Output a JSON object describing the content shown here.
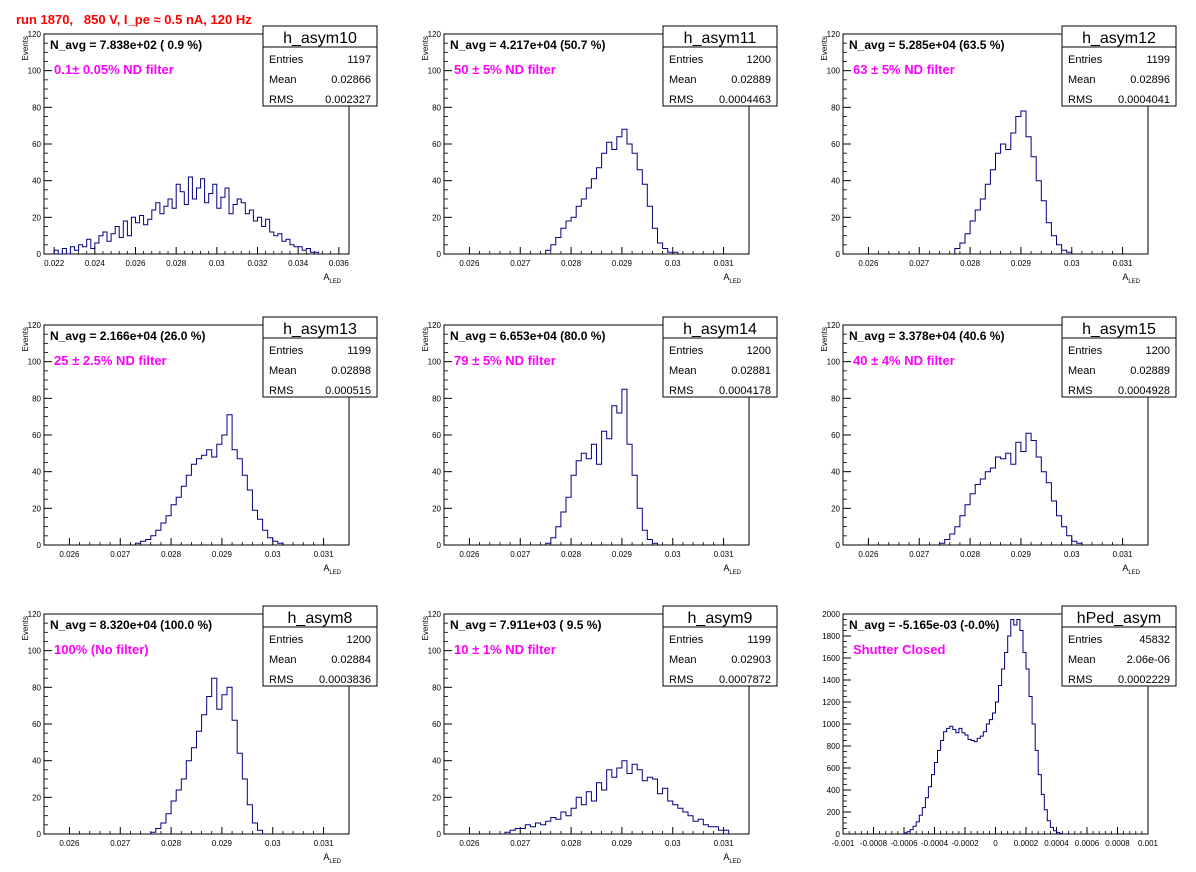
{
  "page_title": "run 1870,   850 V, I_pe ≈ 0.5 nA, 120 Hz",
  "colors": {
    "histogram": "#000080",
    "annotation": "#ff00ff",
    "title": "#ff0000",
    "axis": "#000000"
  },
  "chart_data": [
    {
      "type": "histogram",
      "name": "h_asym10",
      "navg": "N_avg = 7.838e+02 ( 0.9 %)",
      "note": "0.1± 0.05% ND filter",
      "stats": [
        {
          "label": "Entries",
          "value": "1197"
        },
        {
          "label": "Mean",
          "value": "0.02866"
        },
        {
          "label": "RMS",
          "value": "0.002327"
        }
      ],
      "xlabel": "A",
      "xlabel_sub": "LED",
      "ylabel": "Events",
      "xlim": [
        0.0215,
        0.0365
      ],
      "ylim": [
        0,
        120
      ],
      "xticks": [
        0.022,
        0.024,
        0.026,
        0.028,
        0.03,
        0.032,
        0.034,
        0.036
      ],
      "xtick_labels": [
        "0.022",
        "0.024",
        "0.026",
        "0.028",
        "0.03",
        "0.032",
        "0.034",
        "0.036"
      ],
      "yticks": [
        0,
        20,
        40,
        60,
        80,
        100,
        120
      ],
      "ytick_labels": [
        "0",
        "20",
        "40",
        "60",
        "80",
        "100",
        "120"
      ],
      "bin_centers": [
        0.0221,
        0.0223,
        0.0225,
        0.0227,
        0.0229,
        0.0231,
        0.0233,
        0.0235,
        0.0237,
        0.0239,
        0.0241,
        0.0243,
        0.0245,
        0.0247,
        0.0249,
        0.0251,
        0.0253,
        0.0255,
        0.0257,
        0.0259,
        0.0261,
        0.0263,
        0.0265,
        0.0267,
        0.0269,
        0.0271,
        0.0273,
        0.0275,
        0.0277,
        0.0279,
        0.0281,
        0.0283,
        0.0285,
        0.0287,
        0.0289,
        0.0291,
        0.0293,
        0.0295,
        0.0297,
        0.0299,
        0.0301,
        0.0303,
        0.0305,
        0.0307,
        0.0309,
        0.0311,
        0.0313,
        0.0315,
        0.0317,
        0.0319,
        0.0321,
        0.0323,
        0.0325,
        0.0327,
        0.0329,
        0.0331,
        0.0333,
        0.0335,
        0.0337,
        0.0339,
        0.0341,
        0.0343,
        0.0345,
        0.0347,
        0.0349
      ],
      "counts": [
        2,
        0,
        3,
        0,
        4,
        2,
        5,
        4,
        8,
        3,
        6,
        10,
        12,
        7,
        11,
        15,
        9,
        18,
        10,
        20,
        17,
        21,
        16,
        19,
        24,
        28,
        22,
        26,
        30,
        25,
        38,
        34,
        27,
        42,
        30,
        36,
        41,
        28,
        33,
        38,
        25,
        31,
        36,
        22,
        27,
        30,
        28,
        22,
        24,
        18,
        20,
        15,
        19,
        12,
        10,
        11,
        7,
        8,
        5,
        4,
        4,
        2,
        3,
        1,
        1
      ]
    },
    {
      "type": "histogram",
      "name": "h_asym11",
      "navg": "N_avg = 4.217e+04 (50.7 %)",
      "note": "50 ± 5% ND filter",
      "stats": [
        {
          "label": "Entries",
          "value": "1200"
        },
        {
          "label": "Mean",
          "value": "0.02889"
        },
        {
          "label": "RMS",
          "value": "0.0004463"
        }
      ],
      "xlabel": "A",
      "xlabel_sub": "LED",
      "ylabel": "Events",
      "xlim": [
        0.0255,
        0.0315
      ],
      "ylim": [
        0,
        120
      ],
      "xticks": [
        0.026,
        0.027,
        0.028,
        0.029,
        0.03,
        0.031
      ],
      "xtick_labels": [
        "0.026",
        "0.027",
        "0.028",
        "0.029",
        "0.03",
        "0.031"
      ],
      "yticks": [
        0,
        20,
        40,
        60,
        80,
        100,
        120
      ],
      "ytick_labels": [
        "0",
        "20",
        "40",
        "60",
        "80",
        "100",
        "120"
      ],
      "bin_centers": [
        0.02755,
        0.02765,
        0.02775,
        0.02785,
        0.02795,
        0.02805,
        0.02815,
        0.02825,
        0.02835,
        0.02845,
        0.02855,
        0.02865,
        0.02875,
        0.02885,
        0.02895,
        0.02905,
        0.02915,
        0.02925,
        0.02935,
        0.02945,
        0.02955,
        0.02965,
        0.02975,
        0.02985,
        0.02995,
        0.03005
      ],
      "counts": [
        2,
        5,
        9,
        14,
        18,
        20,
        26,
        30,
        36,
        41,
        47,
        55,
        61,
        57,
        64,
        68,
        60,
        55,
        46,
        38,
        26,
        14,
        6,
        3,
        1,
        1
      ]
    },
    {
      "type": "histogram",
      "name": "h_asym12",
      "navg": "N_avg = 5.285e+04 (63.5 %)",
      "note": "63 ± 5% ND filter",
      "stats": [
        {
          "label": "Entries",
          "value": "1199"
        },
        {
          "label": "Mean",
          "value": "0.02896"
        },
        {
          "label": "RMS",
          "value": "0.0004041"
        }
      ],
      "xlabel": "A",
      "xlabel_sub": "LED",
      "ylabel": "Events",
      "xlim": [
        0.0255,
        0.0315
      ],
      "ylim": [
        0,
        120
      ],
      "xticks": [
        0.026,
        0.027,
        0.028,
        0.029,
        0.03,
        0.031
      ],
      "xtick_labels": [
        "0.026",
        "0.027",
        "0.028",
        "0.029",
        "0.03",
        "0.031"
      ],
      "yticks": [
        0,
        20,
        40,
        60,
        80,
        100,
        120
      ],
      "ytick_labels": [
        "0",
        "20",
        "40",
        "60",
        "80",
        "100",
        "120"
      ],
      "bin_centers": [
        0.02775,
        0.02785,
        0.02795,
        0.02805,
        0.02815,
        0.02825,
        0.02835,
        0.02845,
        0.02855,
        0.02865,
        0.02875,
        0.02885,
        0.02895,
        0.02905,
        0.02915,
        0.02925,
        0.02935,
        0.02945,
        0.02955,
        0.02965,
        0.02975,
        0.02985,
        0.02995
      ],
      "counts": [
        3,
        6,
        11,
        18,
        24,
        30,
        38,
        46,
        55,
        60,
        57,
        66,
        75,
        78,
        64,
        53,
        40,
        29,
        17,
        10,
        5,
        2,
        1
      ]
    },
    {
      "type": "histogram",
      "name": "h_asym13",
      "navg": "N_avg = 2.166e+04 (26.0 %)",
      "note": "25 ± 2.5% ND filter",
      "stats": [
        {
          "label": "Entries",
          "value": "1199"
        },
        {
          "label": "Mean",
          "value": "0.02898"
        },
        {
          "label": "RMS",
          "value": "0.000515"
        }
      ],
      "xlabel": "A",
      "xlabel_sub": "LED",
      "ylabel": "Events",
      "xlim": [
        0.0255,
        0.0315
      ],
      "ylim": [
        0,
        120
      ],
      "xticks": [
        0.026,
        0.027,
        0.028,
        0.029,
        0.03,
        0.031
      ],
      "xtick_labels": [
        "0.026",
        "0.027",
        "0.028",
        "0.029",
        "0.03",
        "0.031"
      ],
      "yticks": [
        0,
        20,
        40,
        60,
        80,
        100,
        120
      ],
      "ytick_labels": [
        "0",
        "20",
        "40",
        "60",
        "80",
        "100",
        "120"
      ],
      "bin_centers": [
        0.02735,
        0.02745,
        0.02755,
        0.02765,
        0.02775,
        0.02785,
        0.02795,
        0.02805,
        0.02815,
        0.02825,
        0.02835,
        0.02845,
        0.02855,
        0.02865,
        0.02875,
        0.02885,
        0.02895,
        0.02905,
        0.02915,
        0.02925,
        0.02935,
        0.02945,
        0.02955,
        0.02965,
        0.02975,
        0.02985,
        0.02995,
        0.03005,
        0.03015
      ],
      "counts": [
        1,
        2,
        3,
        5,
        8,
        12,
        16,
        22,
        26,
        32,
        38,
        44,
        47,
        49,
        52,
        48,
        55,
        60,
        71,
        52,
        47,
        38,
        30,
        19,
        14,
        8,
        4,
        2,
        1
      ]
    },
    {
      "type": "histogram",
      "name": "h_asym14",
      "navg": "N_avg = 6.653e+04 (80.0 %)",
      "note": "79 ± 5% ND filter",
      "stats": [
        {
          "label": "Entries",
          "value": "1200"
        },
        {
          "label": "Mean",
          "value": "0.02881"
        },
        {
          "label": "RMS",
          "value": "0.0004178"
        }
      ],
      "xlabel": "A",
      "xlabel_sub": "LED",
      "ylabel": "Events",
      "xlim": [
        0.0255,
        0.0315
      ],
      "ylim": [
        0,
        120
      ],
      "xticks": [
        0.026,
        0.027,
        0.028,
        0.029,
        0.03,
        0.031
      ],
      "xtick_labels": [
        "0.026",
        "0.027",
        "0.028",
        "0.029",
        "0.03",
        "0.031"
      ],
      "yticks": [
        0,
        20,
        40,
        60,
        80,
        100,
        120
      ],
      "ytick_labels": [
        "0",
        "20",
        "40",
        "60",
        "80",
        "100",
        "120"
      ],
      "bin_centers": [
        0.02755,
        0.02765,
        0.02775,
        0.02785,
        0.02795,
        0.02805,
        0.02815,
        0.02825,
        0.02835,
        0.02845,
        0.02855,
        0.02865,
        0.02875,
        0.02885,
        0.02895,
        0.02905,
        0.02915,
        0.02925,
        0.02935,
        0.02945,
        0.02955,
        0.02965
      ],
      "counts": [
        1,
        4,
        10,
        18,
        26,
        38,
        46,
        50,
        47,
        55,
        44,
        62,
        58,
        76,
        72,
        85,
        55,
        38,
        20,
        8,
        3,
        1
      ]
    },
    {
      "type": "histogram",
      "name": "h_asym15",
      "navg": "N_avg = 3.378e+04 (40.6 %)",
      "note": "40 ± 4% ND filter",
      "stats": [
        {
          "label": "Entries",
          "value": "1200"
        },
        {
          "label": "Mean",
          "value": "0.02889"
        },
        {
          "label": "RMS",
          "value": "0.0004928"
        }
      ],
      "xlabel": "A",
      "xlabel_sub": "LED",
      "ylabel": "Events",
      "xlim": [
        0.0255,
        0.0315
      ],
      "ylim": [
        0,
        120
      ],
      "xticks": [
        0.026,
        0.027,
        0.028,
        0.029,
        0.03,
        0.031
      ],
      "xtick_labels": [
        "0.026",
        "0.027",
        "0.028",
        "0.029",
        "0.03",
        "0.031"
      ],
      "yticks": [
        0,
        20,
        40,
        60,
        80,
        100,
        120
      ],
      "ytick_labels": [
        "0",
        "20",
        "40",
        "60",
        "80",
        "100",
        "120"
      ],
      "bin_centers": [
        0.02745,
        0.02755,
        0.02765,
        0.02775,
        0.02785,
        0.02795,
        0.02805,
        0.02815,
        0.02825,
        0.02835,
        0.02845,
        0.02855,
        0.02865,
        0.02875,
        0.02885,
        0.02895,
        0.02905,
        0.02915,
        0.02925,
        0.02935,
        0.02945,
        0.02955,
        0.02965,
        0.02975,
        0.02985,
        0.02995,
        0.03005,
        0.03015
      ],
      "counts": [
        1,
        3,
        6,
        10,
        16,
        22,
        28,
        33,
        36,
        40,
        42,
        48,
        47,
        50,
        44,
        56,
        51,
        61,
        57,
        48,
        40,
        34,
        24,
        16,
        10,
        5,
        2,
        1
      ]
    },
    {
      "type": "histogram",
      "name": "h_asym8",
      "navg": "N_avg = 8.320e+04 (100.0 %)",
      "note": "100% (No filter)",
      "stats": [
        {
          "label": "Entries",
          "value": "1200"
        },
        {
          "label": "Mean",
          "value": "0.02884"
        },
        {
          "label": "RMS",
          "value": "0.0003836"
        }
      ],
      "xlabel": "A",
      "xlabel_sub": "LED",
      "ylabel": "Events",
      "xlim": [
        0.0255,
        0.0315
      ],
      "ylim": [
        0,
        120
      ],
      "xticks": [
        0.026,
        0.027,
        0.028,
        0.029,
        0.03,
        0.031
      ],
      "xtick_labels": [
        "0.026",
        "0.027",
        "0.028",
        "0.029",
        "0.03",
        "0.031"
      ],
      "yticks": [
        0,
        20,
        40,
        60,
        80,
        100,
        120
      ],
      "ytick_labels": [
        "0",
        "20",
        "40",
        "60",
        "80",
        "100",
        "120"
      ],
      "bin_centers": [
        0.02765,
        0.02775,
        0.02785,
        0.02795,
        0.02805,
        0.02815,
        0.02825,
        0.02835,
        0.02845,
        0.02855,
        0.02865,
        0.02875,
        0.02885,
        0.02895,
        0.02905,
        0.02915,
        0.02925,
        0.02935,
        0.02945,
        0.02955,
        0.02965,
        0.02975
      ],
      "counts": [
        1,
        3,
        6,
        11,
        18,
        24,
        30,
        40,
        47,
        56,
        65,
        75,
        85,
        68,
        76,
        80,
        62,
        44,
        30,
        16,
        6,
        2
      ]
    },
    {
      "type": "histogram",
      "name": "h_asym9",
      "navg": "N_avg = 7.911e+03 ( 9.5 %)",
      "note": "10 ± 1% ND filter",
      "stats": [
        {
          "label": "Entries",
          "value": "1199"
        },
        {
          "label": "Mean",
          "value": "0.02903"
        },
        {
          "label": "RMS",
          "value": "0.0007872"
        }
      ],
      "xlabel": "A",
      "xlabel_sub": "LED",
      "ylabel": "Events",
      "xlim": [
        0.0255,
        0.0315
      ],
      "ylim": [
        0,
        120
      ],
      "xticks": [
        0.026,
        0.027,
        0.028,
        0.029,
        0.03,
        0.031
      ],
      "xtick_labels": [
        "0.026",
        "0.027",
        "0.028",
        "0.029",
        "0.03",
        "0.031"
      ],
      "yticks": [
        0,
        20,
        40,
        60,
        80,
        100,
        120
      ],
      "ytick_labels": [
        "0",
        "20",
        "40",
        "60",
        "80",
        "100",
        "120"
      ],
      "bin_centers": [
        0.02675,
        0.02685,
        0.02695,
        0.02705,
        0.02715,
        0.02725,
        0.02735,
        0.02745,
        0.02755,
        0.02765,
        0.02775,
        0.02785,
        0.02795,
        0.02805,
        0.02815,
        0.02825,
        0.02835,
        0.02845,
        0.02855,
        0.02865,
        0.02875,
        0.02885,
        0.02895,
        0.02905,
        0.02915,
        0.02925,
        0.02935,
        0.02945,
        0.02955,
        0.02965,
        0.02975,
        0.02985,
        0.02995,
        0.03005,
        0.03015,
        0.03025,
        0.03035,
        0.03045,
        0.03055,
        0.03065,
        0.03075,
        0.03085,
        0.03095,
        0.03105
      ],
      "counts": [
        1,
        2,
        3,
        3,
        5,
        4,
        6,
        5,
        7,
        9,
        8,
        12,
        10,
        14,
        20,
        16,
        23,
        18,
        28,
        24,
        35,
        31,
        36,
        40,
        33,
        38,
        35,
        29,
        31,
        30,
        22,
        25,
        18,
        16,
        14,
        12,
        10,
        7,
        8,
        5,
        4,
        4,
        2,
        2
      ]
    },
    {
      "type": "histogram",
      "name": "hPed_asym",
      "navg": "N_avg = -5.165e-03 (-0.0%)",
      "note": "Shutter Closed",
      "stats": [
        {
          "label": "Entries",
          "value": "45832"
        },
        {
          "label": "Mean",
          "value": "2.06e-06"
        },
        {
          "label": "RMS",
          "value": "0.0002229"
        }
      ],
      "xlabel": "",
      "xlabel_sub": "",
      "ylabel": "",
      "xlim": [
        -0.001,
        0.001
      ],
      "ylim": [
        0,
        2000
      ],
      "xticks": [
        -0.001,
        -0.0008,
        -0.0006,
        -0.0004,
        -0.0002,
        0,
        0.0002,
        0.0004,
        0.0006,
        0.0008,
        0.001
      ],
      "xtick_labels": [
        "-0.001",
        "-0.0008",
        "-0.0006",
        "-0.0004",
        "-0.0002",
        "0",
        "0.0002",
        "0.0004",
        "0.0006",
        "0.0008",
        "0.001"
      ],
      "yticks": [
        0,
        200,
        400,
        600,
        800,
        1000,
        1200,
        1400,
        1600,
        1800,
        2000
      ],
      "ytick_labels": [
        "0",
        "200",
        "400",
        "600",
        "800",
        "1000",
        "1200",
        "1400",
        "1600",
        "1800",
        "2000"
      ],
      "bin_centers": [
        -0.00059,
        -0.00057,
        -0.00055,
        -0.00053,
        -0.00051,
        -0.00049,
        -0.00047,
        -0.00045,
        -0.00043,
        -0.00041,
        -0.00039,
        -0.00037,
        -0.00035,
        -0.00033,
        -0.00031,
        -0.00029,
        -0.00027,
        -0.00025,
        -0.00023,
        -0.00021,
        -0.00019,
        -0.00017,
        -0.00015,
        -0.00013,
        -0.00011,
        -9e-05,
        -7e-05,
        -5e-05,
        -3e-05,
        -1e-05,
        1e-05,
        3e-05,
        5e-05,
        7e-05,
        9e-05,
        0.00011,
        0.00013,
        0.00015,
        0.00017,
        0.00019,
        0.00021,
        0.00023,
        0.00025,
        0.00027,
        0.00029,
        0.00031,
        0.00033,
        0.00035,
        0.00037,
        0.00039,
        0.00041,
        0.00043
      ],
      "counts": [
        10,
        20,
        40,
        70,
        110,
        170,
        240,
        330,
        430,
        540,
        650,
        760,
        850,
        930,
        960,
        980,
        950,
        920,
        960,
        920,
        900,
        860,
        850,
        840,
        870,
        890,
        930,
        1000,
        1040,
        1100,
        1200,
        1350,
        1500,
        1650,
        1800,
        1950,
        1900,
        1950,
        1850,
        1650,
        1500,
        1250,
        1000,
        760,
        540,
        360,
        220,
        120,
        60,
        30,
        15,
        5
      ]
    }
  ]
}
